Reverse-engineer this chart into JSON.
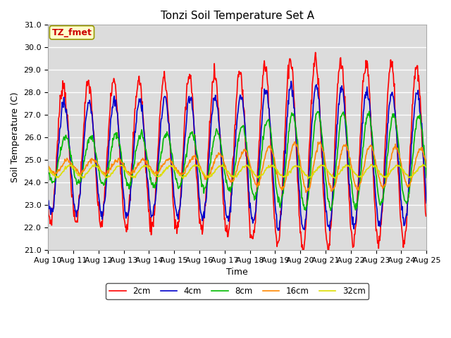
{
  "title": "Tonzi Soil Temperature Set A",
  "xlabel": "Time",
  "ylabel": "Soil Temperature (C)",
  "ylim": [
    21.0,
    31.0
  ],
  "yticks": [
    21.0,
    22.0,
    23.0,
    24.0,
    25.0,
    26.0,
    27.0,
    28.0,
    29.0,
    30.0,
    31.0
  ],
  "xtick_labels": [
    "Aug 10",
    "Aug 11",
    "Aug 12",
    "Aug 13",
    "Aug 14",
    "Aug 15",
    "Aug 16",
    "Aug 17",
    "Aug 18",
    "Aug 19",
    "Aug 20",
    "Aug 21",
    "Aug 22",
    "Aug 23",
    "Aug 24",
    "Aug 25"
  ],
  "colors": {
    "2cm": "#ff0000",
    "4cm": "#0000cc",
    "8cm": "#00bb00",
    "16cm": "#ff8800",
    "32cm": "#dddd00"
  },
  "linewidth": 1.2,
  "legend_label": "TZ_fmet",
  "fig_bg": "#ffffff",
  "plot_bg": "#dcdcdc",
  "grid_color": "#ffffff",
  "title_fontsize": 11,
  "label_fontsize": 9,
  "tick_fontsize": 8
}
